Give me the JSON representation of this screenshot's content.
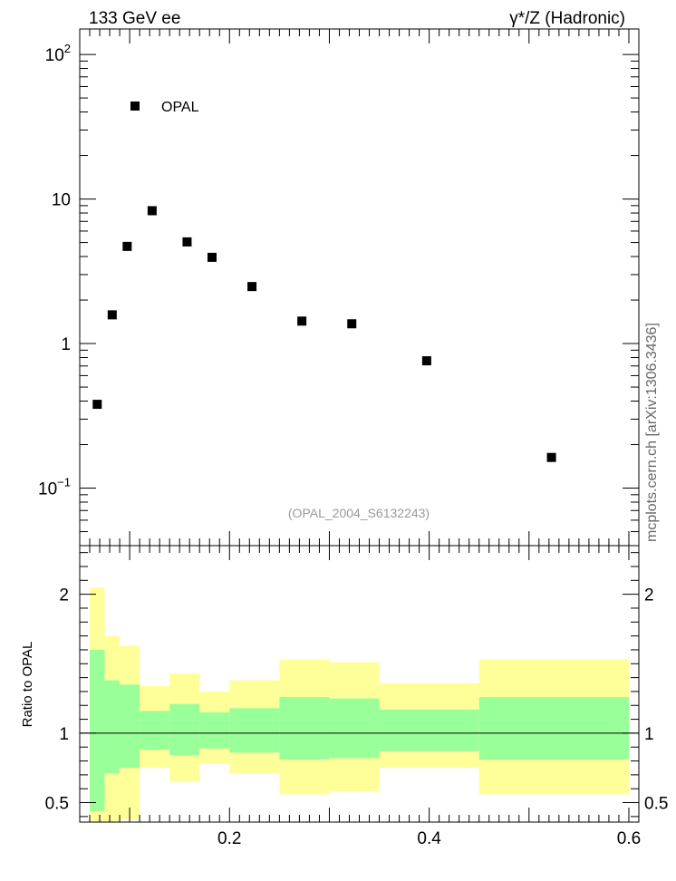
{
  "header": {
    "left": "133 GeV ee",
    "right": "γ*/Z (Hadronic)"
  },
  "side_label": "mcplots.cern.ch [arXiv:1306.3436]",
  "watermark": "(OPAL_2004_S6132243)",
  "chart_data": [
    {
      "type": "scatter",
      "yscale": "log",
      "xlim": [
        0.05,
        0.61
      ],
      "ylim": [
        0.04,
        150
      ],
      "xlabel": "",
      "ylabel": "",
      "legend": {
        "label": "OPAL",
        "placement": "top-left"
      },
      "y_tick_labels": [
        {
          "value": 0.1,
          "base": "10",
          "exp": "−1"
        },
        {
          "value": 1,
          "base": "1",
          "exp": ""
        },
        {
          "value": 10,
          "base": "10",
          "exp": ""
        },
        {
          "value": 100,
          "base": "10",
          "exp": "2"
        }
      ],
      "series": [
        {
          "name": "OPAL",
          "color": "#000000",
          "x": [
            0.0675,
            0.0825,
            0.0975,
            0.1225,
            0.1575,
            0.1825,
            0.2225,
            0.2725,
            0.3225,
            0.3975,
            0.5225
          ],
          "y": [
            0.38,
            1.58,
            4.7,
            8.3,
            5.05,
            3.95,
            2.48,
            1.43,
            1.37,
            0.76,
            0.163
          ]
        }
      ]
    },
    {
      "type": "area",
      "xlim": [
        0.05,
        0.61
      ],
      "ylim": [
        0.36,
        2.35
      ],
      "ylabel": "Ratio to OPAL",
      "x_tick_labels": [
        "0.2",
        "0.4",
        "0.6"
      ],
      "x_ticks": [
        0.2,
        0.4,
        0.6
      ],
      "y_tick_labels": [
        "0.5",
        "1",
        "2"
      ],
      "y_ticks": [
        0.5,
        1,
        2
      ],
      "reference_line": 1,
      "colors": {
        "inner": "#99ff99",
        "outer": "#ffff99",
        "line": "#000000"
      },
      "bands": [
        {
          "x0": 0.06,
          "x1": 0.075,
          "inner": [
            0.44,
            1.6
          ],
          "outer": [
            0.36,
            2.05
          ]
        },
        {
          "x0": 0.075,
          "x1": 0.09,
          "inner": [
            0.71,
            1.38
          ],
          "outer": [
            0.36,
            1.7
          ]
        },
        {
          "x0": 0.09,
          "x1": 0.11,
          "inner": [
            0.75,
            1.35
          ],
          "outer": [
            0.38,
            1.63
          ]
        },
        {
          "x0": 0.11,
          "x1": 0.14,
          "inner": [
            0.88,
            1.16
          ],
          "outer": [
            0.75,
            1.34
          ]
        },
        {
          "x0": 0.14,
          "x1": 0.17,
          "inner": [
            0.84,
            1.21
          ],
          "outer": [
            0.65,
            1.43
          ]
        },
        {
          "x0": 0.17,
          "x1": 0.2,
          "inner": [
            0.89,
            1.15
          ],
          "outer": [
            0.78,
            1.3
          ]
        },
        {
          "x0": 0.2,
          "x1": 0.25,
          "inner": [
            0.86,
            1.18
          ],
          "outer": [
            0.71,
            1.38
          ]
        },
        {
          "x0": 0.25,
          "x1": 0.3,
          "inner": [
            0.81,
            1.26
          ],
          "outer": [
            0.56,
            1.53
          ]
        },
        {
          "x0": 0.3,
          "x1": 0.35,
          "inner": [
            0.82,
            1.25
          ],
          "outer": [
            0.58,
            1.51
          ]
        },
        {
          "x0": 0.35,
          "x1": 0.45,
          "inner": [
            0.87,
            1.17
          ],
          "outer": [
            0.75,
            1.36
          ]
        },
        {
          "x0": 0.45,
          "x1": 0.6,
          "inner": [
            0.81,
            1.26
          ],
          "outer": [
            0.56,
            1.53
          ]
        }
      ]
    }
  ]
}
